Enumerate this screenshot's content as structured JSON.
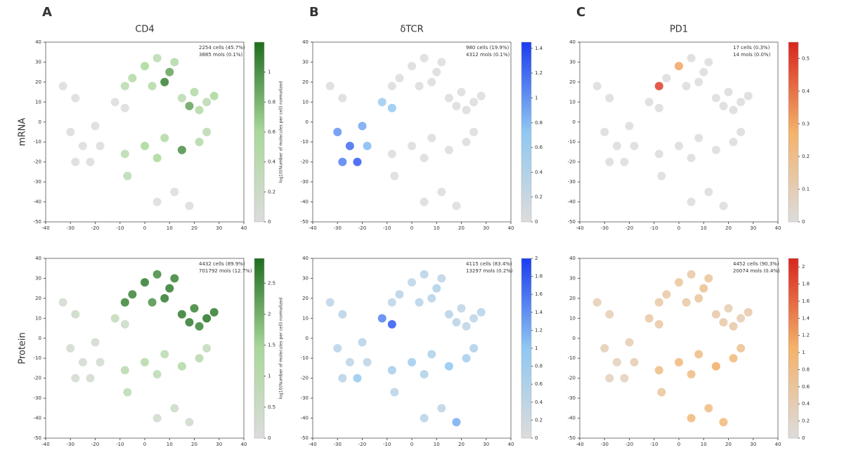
{
  "chart_data": [
    {
      "type": "scatter",
      "panel": "A",
      "title": "CD4",
      "row_label": "mRNA",
      "annotations": [
        "2254 cells (45.7%)",
        "3885 mols (0.1%)"
      ],
      "colorbar_label": "log10(Number of molecules per cell) normalized",
      "x": [
        -5,
        0,
        5,
        10,
        -8,
        3,
        12,
        8,
        15,
        20,
        25,
        28,
        22,
        18,
        -8,
        0,
        8,
        15,
        22,
        5,
        25,
        -30,
        -25,
        -20,
        -28,
        -22,
        -18,
        -33,
        -28,
        5,
        12,
        18,
        -7,
        -12,
        -8
      ],
      "y": [
        22,
        28,
        32,
        25,
        18,
        18,
        30,
        20,
        12,
        15,
        10,
        13,
        6,
        8,
        -16,
        -12,
        -8,
        -14,
        -10,
        -18,
        -5,
        -5,
        -12,
        -2,
        -20,
        -20,
        -12,
        18,
        12,
        -40,
        -35,
        -42,
        -27,
        10,
        7
      ],
      "values": [
        0.5,
        0.6,
        0.4,
        0.9,
        0.4,
        0.5,
        0.5,
        1.1,
        0.4,
        0.5,
        0.4,
        0.6,
        0.5,
        0.9,
        0.4,
        0.6,
        0.5,
        1.0,
        0.5,
        0.6,
        0.4,
        0,
        0,
        0,
        0,
        0,
        0,
        0,
        0,
        0,
        0,
        0,
        0.4,
        0,
        0
      ],
      "colormap": [
        "#dcdcdc",
        "#a9d89a",
        "#1e6e1e"
      ],
      "clim": [
        0,
        1.2
      ],
      "cticks": [
        0,
        0.2,
        0.4,
        0.6,
        0.8,
        1
      ],
      "xlim": [
        -40,
        40
      ],
      "ylim": [
        -50,
        40
      ],
      "xticks": [
        -40,
        -30,
        -20,
        -10,
        0,
        10,
        20,
        30,
        40
      ],
      "yticks": [
        -50,
        -40,
        -30,
        -20,
        -10,
        0,
        10,
        20,
        30,
        40
      ]
    },
    {
      "type": "scatter",
      "panel": "B",
      "title": "δTCR",
      "annotations": [
        "980 cells (19.9%)",
        "4312 mols (0.1%)"
      ],
      "x": [
        -5,
        0,
        5,
        10,
        -8,
        3,
        12,
        8,
        15,
        20,
        25,
        28,
        22,
        18,
        -8,
        0,
        8,
        15,
        22,
        5,
        25,
        -30,
        -25,
        -20,
        -28,
        -22,
        -18,
        -33,
        -28,
        5,
        12,
        18,
        -7,
        -12,
        -8
      ],
      "y": [
        22,
        28,
        32,
        25,
        18,
        18,
        30,
        20,
        12,
        15,
        10,
        13,
        6,
        8,
        -16,
        -12,
        -8,
        -14,
        -10,
        -18,
        -5,
        -5,
        -12,
        -2,
        -20,
        -20,
        -12,
        18,
        12,
        -40,
        -35,
        -42,
        -27,
        10,
        7
      ],
      "values": [
        0,
        0,
        0,
        0,
        0,
        0,
        0,
        0,
        0,
        0,
        0,
        0,
        0,
        0,
        0,
        0,
        0,
        0,
        0,
        0,
        0,
        1.0,
        1.2,
        0.9,
        1.1,
        1.3,
        0.8,
        0,
        0,
        0,
        0,
        0,
        0,
        0.6,
        0.7
      ],
      "colormap": [
        "#dcdcdc",
        "#8fc8f2",
        "#1a3cf0"
      ],
      "clim": [
        0,
        1.45
      ],
      "cticks": [
        0,
        0.2,
        0.4,
        0.6,
        0.8,
        1,
        1.2,
        1.4
      ],
      "xlim": [
        -40,
        40
      ],
      "ylim": [
        -50,
        40
      ],
      "xticks": [
        -40,
        -30,
        -20,
        -10,
        0,
        10,
        20,
        30,
        40
      ],
      "yticks": [
        -50,
        -40,
        -30,
        -20,
        -10,
        0,
        10,
        20,
        30,
        40
      ]
    },
    {
      "type": "scatter",
      "panel": "C",
      "title": "PD1",
      "annotations": [
        "17 cells (0.3%)",
        "14 mols (0.0%)"
      ],
      "x": [
        -5,
        0,
        5,
        10,
        -8,
        3,
        12,
        8,
        15,
        20,
        25,
        28,
        22,
        18,
        -8,
        0,
        8,
        15,
        22,
        5,
        25,
        -30,
        -25,
        -20,
        -28,
        -22,
        -18,
        -33,
        -28,
        5,
        12,
        18,
        -7,
        -12,
        -8
      ],
      "y": [
        22,
        28,
        32,
        25,
        18,
        18,
        30,
        20,
        12,
        15,
        10,
        13,
        6,
        8,
        -16,
        -12,
        -8,
        -14,
        -10,
        -18,
        -5,
        -5,
        -12,
        -2,
        -20,
        -20,
        -12,
        18,
        12,
        -40,
        -35,
        -42,
        -27,
        10,
        7
      ],
      "values": [
        0,
        0.3,
        0,
        0,
        0.5,
        0,
        0,
        0,
        0,
        0,
        0,
        0,
        0,
        0,
        0,
        0,
        0,
        0,
        0,
        0,
        0,
        0,
        0,
        0,
        0,
        0,
        0,
        0,
        0,
        0,
        0,
        0,
        0,
        0,
        0
      ],
      "colormap": [
        "#dcdcdc",
        "#f4b26a",
        "#d7261e"
      ],
      "clim": [
        0,
        0.55
      ],
      "cticks": [
        0,
        0.1,
        0.2,
        0.3,
        0.4,
        0.5
      ],
      "xlim": [
        -40,
        40
      ],
      "ylim": [
        -50,
        40
      ],
      "xticks": [
        -40,
        -30,
        -20,
        -10,
        0,
        10,
        20,
        30,
        40
      ],
      "yticks": [
        -50,
        -40,
        -30,
        -20,
        -10,
        0,
        10,
        20,
        30,
        40
      ]
    },
    {
      "type": "scatter",
      "row_label": "Protein",
      "annotations": [
        "4432 cells (89.9%)",
        "701792 mols (12.7%)"
      ],
      "colorbar_label": "log10(Number of molecules per cell) normalized",
      "x": [
        -5,
        0,
        5,
        10,
        -8,
        3,
        12,
        8,
        15,
        20,
        25,
        28,
        22,
        18,
        -8,
        0,
        8,
        15,
        22,
        5,
        25,
        -30,
        -25,
        -20,
        -28,
        -22,
        -18,
        -33,
        -28,
        5,
        12,
        18,
        -7,
        -12,
        -8
      ],
      "y": [
        22,
        28,
        32,
        25,
        18,
        18,
        30,
        20,
        12,
        15,
        10,
        13,
        6,
        8,
        -16,
        -12,
        -8,
        -14,
        -10,
        -18,
        -5,
        -5,
        -12,
        -2,
        -20,
        -20,
        -12,
        18,
        12,
        -40,
        -35,
        -42,
        -27,
        10,
        7
      ],
      "values": [
        2.6,
        2.7,
        2.5,
        2.7,
        2.6,
        2.4,
        2.6,
        2.7,
        2.7,
        2.6,
        2.8,
        2.7,
        2.6,
        2.7,
        1.0,
        1.1,
        0.9,
        1.2,
        1.0,
        0.9,
        0.8,
        0.3,
        0.3,
        0.3,
        0.3,
        0.3,
        0.3,
        0.3,
        0.5,
        0.4,
        0.5,
        0.4,
        0.9,
        0.8,
        0.5
      ],
      "colormap": [
        "#dcdcdc",
        "#a9d89a",
        "#1e6e1e"
      ],
      "clim": [
        0,
        2.9
      ],
      "cticks": [
        0,
        0.5,
        1,
        1.5,
        2,
        2.5
      ],
      "xlim": [
        -40,
        40
      ],
      "ylim": [
        -50,
        40
      ],
      "xticks": [
        -40,
        -30,
        -20,
        -10,
        0,
        10,
        20,
        30,
        40
      ],
      "yticks": [
        -50,
        -40,
        -30,
        -20,
        -10,
        0,
        10,
        20,
        30,
        40
      ]
    },
    {
      "type": "scatter",
      "annotations": [
        "4115 cells (83.4%)",
        "13297 mols (0.2%)"
      ],
      "x": [
        -5,
        0,
        5,
        10,
        -8,
        3,
        12,
        8,
        15,
        20,
        25,
        28,
        22,
        18,
        -8,
        0,
        8,
        15,
        22,
        5,
        25,
        -30,
        -25,
        -20,
        -28,
        -22,
        -18,
        -33,
        -28,
        5,
        12,
        18,
        -7,
        -12,
        -8
      ],
      "y": [
        22,
        28,
        32,
        25,
        18,
        18,
        30,
        20,
        12,
        15,
        10,
        13,
        6,
        8,
        -16,
        -12,
        -8,
        -14,
        -10,
        -18,
        -5,
        -5,
        -12,
        -2,
        -20,
        -20,
        -12,
        18,
        12,
        -40,
        -35,
        -42,
        -27,
        10,
        7
      ],
      "values": [
        0.5,
        0.4,
        0.5,
        0.6,
        0.4,
        0.5,
        0.4,
        0.5,
        0.5,
        0.4,
        0.4,
        0.5,
        0.4,
        0.5,
        0.7,
        0.8,
        0.6,
        1.0,
        0.7,
        0.6,
        0.6,
        0.5,
        0.4,
        0.5,
        0.5,
        0.9,
        0.4,
        0.4,
        0.5,
        0.5,
        0.4,
        1.2,
        0.5,
        1.5,
        1.8
      ],
      "colormap": [
        "#dcdcdc",
        "#8fc8f2",
        "#1a3cf0"
      ],
      "clim": [
        0,
        2
      ],
      "cticks": [
        0,
        0.2,
        0.4,
        0.6,
        0.8,
        1,
        1.2,
        1.4,
        1.6,
        1.8,
        2
      ],
      "xlim": [
        -40,
        40
      ],
      "ylim": [
        -50,
        40
      ],
      "xticks": [
        -40,
        -30,
        -20,
        -10,
        0,
        10,
        20,
        30,
        40
      ],
      "yticks": [
        -50,
        -40,
        -30,
        -20,
        -10,
        0,
        10,
        20,
        30,
        40
      ]
    },
    {
      "type": "scatter",
      "annotations": [
        "4452 cells (90.3%)",
        "20074 mols (0.4%)"
      ],
      "x": [
        -5,
        0,
        5,
        10,
        -8,
        3,
        12,
        8,
        15,
        20,
        25,
        28,
        22,
        18,
        -8,
        0,
        8,
        15,
        22,
        5,
        25,
        -30,
        -25,
        -20,
        -28,
        -22,
        -18,
        -33,
        -28,
        5,
        12,
        18,
        -7,
        -12,
        -8
      ],
      "y": [
        22,
        28,
        32,
        25,
        18,
        18,
        30,
        20,
        12,
        15,
        10,
        13,
        6,
        8,
        -16,
        -12,
        -8,
        -14,
        -10,
        -18,
        -5,
        -5,
        -12,
        -2,
        -20,
        -20,
        -12,
        18,
        12,
        -40,
        -35,
        -42,
        -27,
        10,
        7
      ],
      "values": [
        0.5,
        0.6,
        0.5,
        0.7,
        0.5,
        0.5,
        0.6,
        0.6,
        0.5,
        0.4,
        0.4,
        0.5,
        0.5,
        0.5,
        0.8,
        0.9,
        0.8,
        1.1,
        0.9,
        0.8,
        0.7,
        0.4,
        0.3,
        0.4,
        0.3,
        0.3,
        0.4,
        0.4,
        0.4,
        0.9,
        0.8,
        0.9,
        0.6,
        0.5,
        0.5
      ],
      "colormap": [
        "#dcdcdc",
        "#f4b26a",
        "#d7261e"
      ],
      "clim": [
        0,
        2.1
      ],
      "cticks": [
        0,
        0.2,
        0.4,
        0.6,
        0.8,
        1,
        1.2,
        1.4,
        1.6,
        1.8,
        2
      ],
      "xlim": [
        -40,
        40
      ],
      "ylim": [
        -50,
        40
      ],
      "xticks": [
        -40,
        -30,
        -20,
        -10,
        0,
        10,
        20,
        30,
        40
      ],
      "yticks": [
        -50,
        -40,
        -30,
        -20,
        -10,
        0,
        10,
        20,
        30,
        40
      ]
    }
  ]
}
